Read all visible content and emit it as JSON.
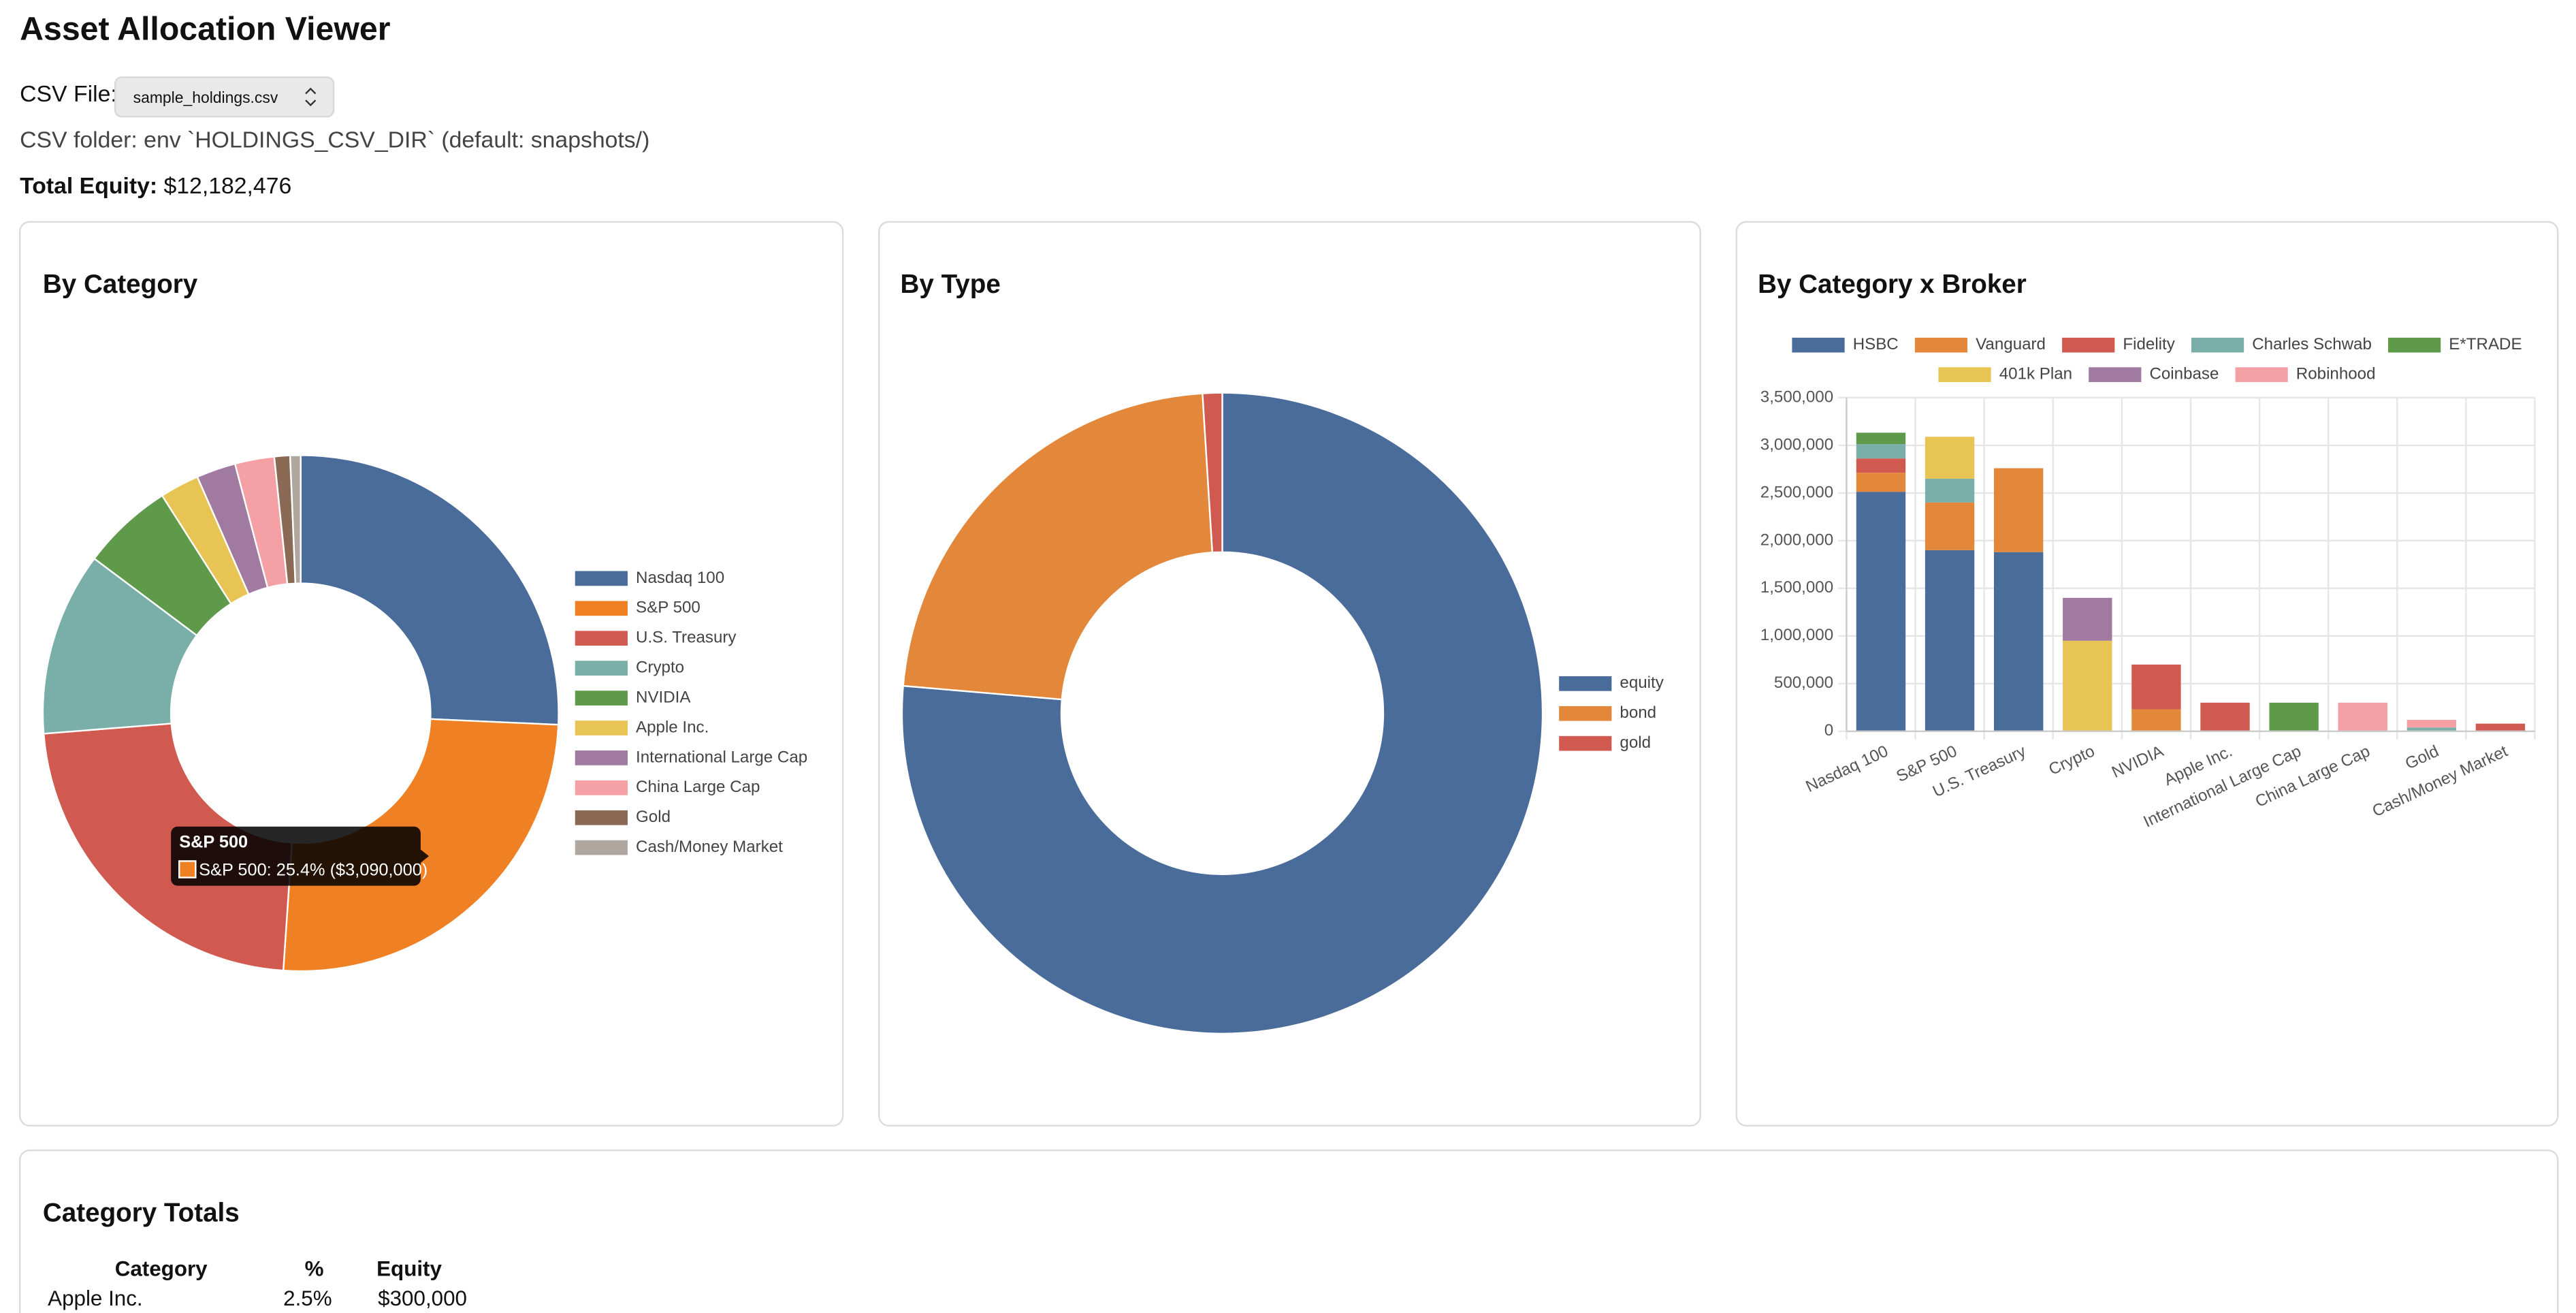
{
  "header": {
    "title": "Asset Allocation Viewer",
    "csv_label": "CSV File:",
    "csv_file": "sample_holdings.csv",
    "csv_folder_note": "CSV folder: env `HOLDINGS_CSV_DIR` (default: snapshots/)",
    "total_label": "Total Equity:",
    "total_value": "$12,182,476"
  },
  "chart_data": [
    {
      "type": "donut",
      "title": "By Category",
      "categories": [
        "Nasdaq 100",
        "S&P 500",
        "U.S. Treasury",
        "Crypto",
        "NVIDIA",
        "Apple Inc.",
        "International Large Cap",
        "China Large Cap",
        "Gold",
        "Cash/Money Market"
      ],
      "values": [
        3132476,
        3090000,
        2760000,
        1400000,
        700000,
        300000,
        300000,
        300000,
        120000,
        80000
      ],
      "colors": [
        "#4a6c9b",
        "#f08024",
        "#d05a50",
        "#7aaea8",
        "#5f9a4a",
        "#e8c454",
        "#a07aa0",
        "#f4a0a4",
        "#8a6a55",
        "#b0a8a0"
      ],
      "legend": "right",
      "tooltip": {
        "title": "S&P 500",
        "text": "S&P 500: 25.4% ($3,090,000)"
      }
    },
    {
      "type": "donut",
      "title": "By Type",
      "categories": [
        "equity",
        "bond",
        "gold"
      ],
      "values": [
        9302476,
        2760000,
        120000
      ],
      "colors": [
        "#4a6c9b",
        "#e3883a",
        "#d05a50"
      ],
      "legend": "right"
    },
    {
      "type": "bar",
      "stacked": true,
      "title": "By Category x Broker",
      "categories": [
        "Nasdaq 100",
        "S&P 500",
        "U.S. Treasury",
        "Crypto",
        "NVIDIA",
        "Apple Inc.",
        "International Large Cap",
        "China Large Cap",
        "Gold",
        "Cash/Money Market"
      ],
      "series": [
        {
          "name": "HSBC",
          "color": "#4a6c9b",
          "values": [
            2512476,
            1900000,
            1880000,
            0,
            0,
            0,
            0,
            0,
            0,
            0
          ]
        },
        {
          "name": "Vanguard",
          "color": "#e3883a",
          "values": [
            200000,
            500000,
            880000,
            0,
            230000,
            0,
            0,
            0,
            0,
            0
          ]
        },
        {
          "name": "Fidelity",
          "color": "#d05a50",
          "values": [
            150000,
            0,
            0,
            0,
            470000,
            300000,
            0,
            0,
            0,
            80000
          ]
        },
        {
          "name": "Charles Schwab",
          "color": "#7aaea8",
          "values": [
            150000,
            250000,
            0,
            0,
            0,
            0,
            0,
            0,
            40000,
            0
          ]
        },
        {
          "name": "E*TRADE",
          "color": "#5f9a4a",
          "values": [
            120000,
            0,
            0,
            0,
            0,
            0,
            300000,
            0,
            0,
            0
          ]
        },
        {
          "name": "401k Plan",
          "color": "#e8c454",
          "values": [
            0,
            440000,
            0,
            950000,
            0,
            0,
            0,
            0,
            0,
            0
          ]
        },
        {
          "name": "Coinbase",
          "color": "#a07aa0",
          "values": [
            0,
            0,
            0,
            450000,
            0,
            0,
            0,
            0,
            0,
            0
          ]
        },
        {
          "name": "Robinhood",
          "color": "#f4a0a4",
          "values": [
            0,
            0,
            0,
            0,
            0,
            0,
            0,
            300000,
            80000,
            0
          ]
        }
      ],
      "ylim": [
        0,
        3500000
      ],
      "yticks": [
        0,
        {
          "value": 500000,
          "label": "500,000"
        },
        {
          "value": 1000000,
          "label": "1,000,000"
        },
        {
          "value": 1500000,
          "label": "1,500,000"
        },
        {
          "value": 2000000,
          "label": "2,000,000"
        },
        {
          "value": 2500000,
          "label": "2,500,000"
        },
        {
          "value": 3000000,
          "label": "3,000,000"
        },
        {
          "value": 3500000,
          "label": "3,500,000"
        }
      ],
      "grid": true,
      "legend": "top"
    }
  ],
  "table": {
    "title": "Category Totals",
    "columns": [
      "Category",
      "%",
      "Equity"
    ],
    "rows": [
      [
        "Apple Inc.",
        "2.5%",
        "$300,000"
      ]
    ]
  }
}
